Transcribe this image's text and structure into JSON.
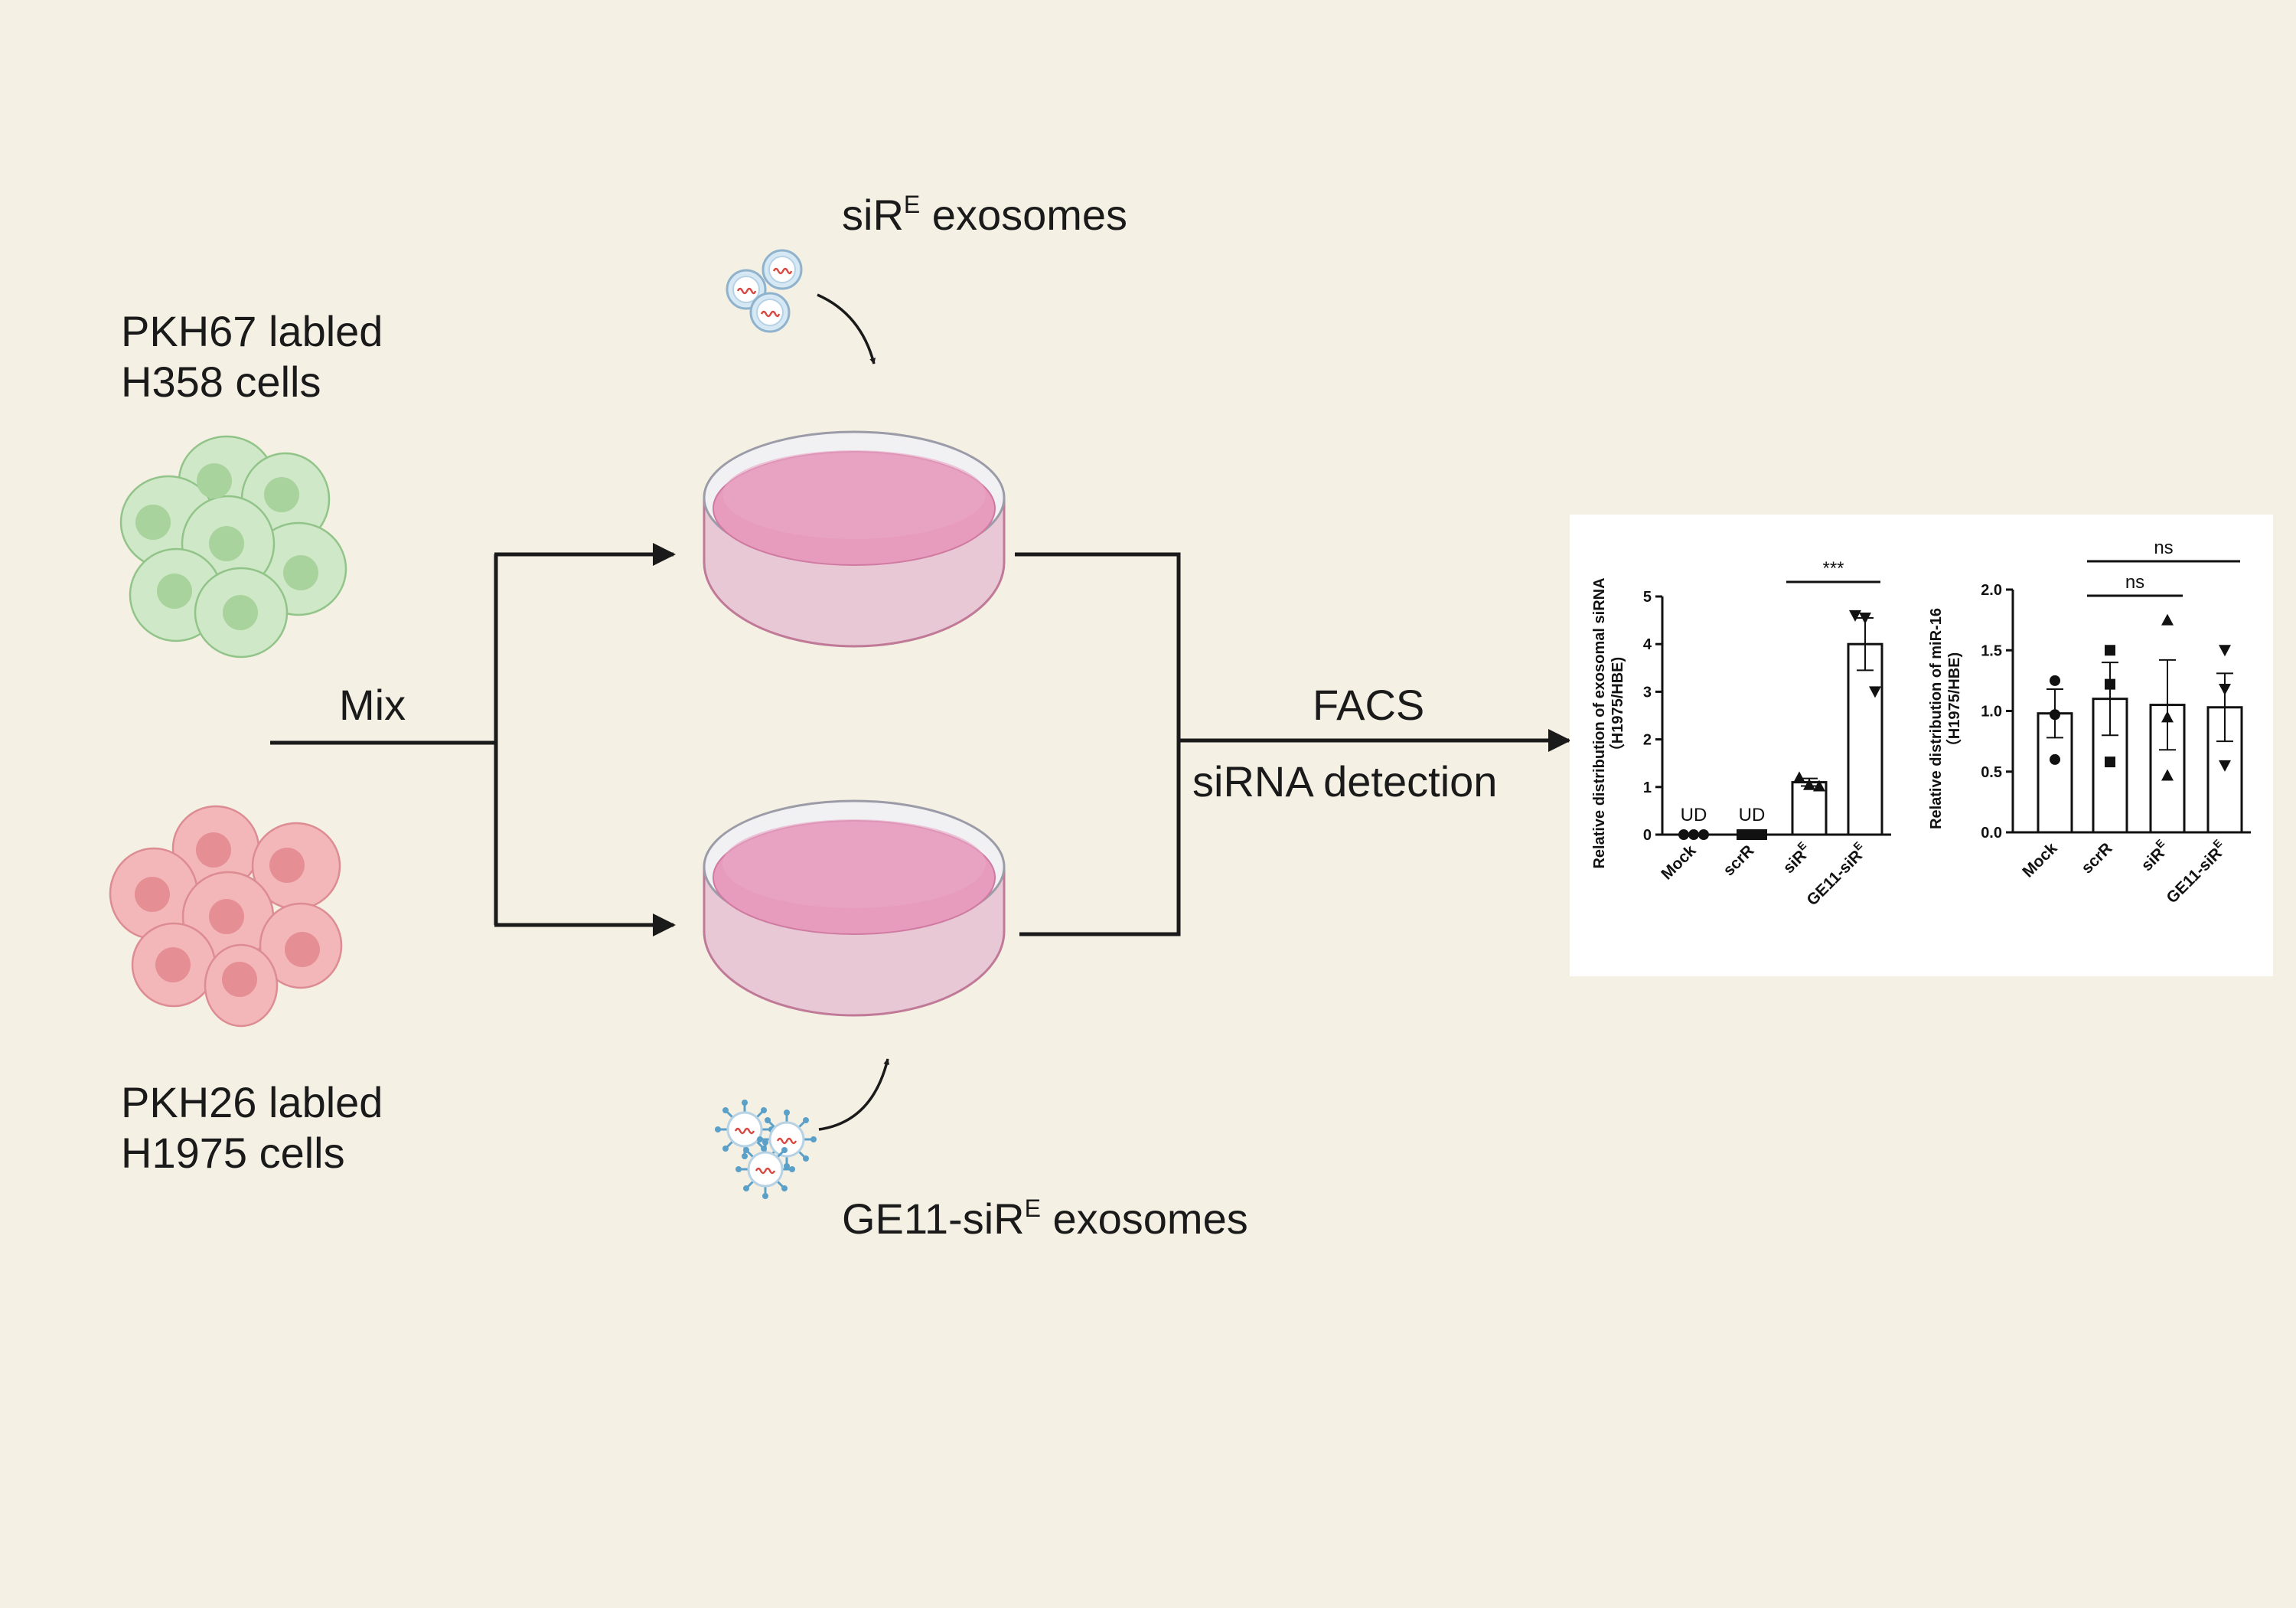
{
  "labels": {
    "h358_line1": "PKH67 labled",
    "h358_line2": "H358 cells",
    "h1975_line1": "PKH26 labled",
    "h1975_line2": "H1975 cells",
    "mix": "Mix",
    "sire_base": "siR",
    "sire_sup": "E",
    "sire_suffix": " exosomes",
    "ge11_base": "GE11-siR",
    "ge11_sup": "E",
    "ge11_suffix": " exosomes",
    "facs": "FACS",
    "detection": "siRNA detection"
  },
  "colors": {
    "background": "#f4f0e3",
    "green_cell": "#cfe8c8",
    "green_nucleus": "#a9d39c",
    "red_cell": "#f3b7b9",
    "red_nucleus": "#e58f95",
    "dish_medium": "#e79bbd",
    "arrow": "#1a1a1a"
  },
  "chart_data": [
    {
      "type": "bar",
      "ylabel_line1": "Relative distribution of exosomal siRNA",
      "ylabel_line2": "（H1975/HBE)",
      "categories": [
        "Mock",
        "scrR",
        "siR",
        "GE11-siR"
      ],
      "category_sup": [
        "",
        "",
        "E",
        "E"
      ],
      "values": [
        0,
        0,
        1.1,
        4.0
      ],
      "errors": [
        0,
        0,
        0.08,
        0.55
      ],
      "points": [
        [
          0,
          0,
          0
        ],
        [
          0,
          0,
          0
        ],
        [
          1.2,
          1.05,
          1.02
        ],
        [
          4.6,
          4.55,
          3.0
        ]
      ],
      "markers": [
        "circle",
        "square",
        "triangle",
        "triangle-down"
      ],
      "undetected_label": "UD",
      "undetected": [
        true,
        true,
        false,
        false
      ],
      "ylim": [
        0,
        5
      ],
      "yticks": [
        "0",
        "1",
        "2",
        "3",
        "4",
        "5"
      ],
      "significance": [
        {
          "from": 2,
          "to": 3,
          "label": "***"
        }
      ]
    },
    {
      "type": "bar",
      "ylabel_line1": "Relative distribution of miR-16",
      "ylabel_line2": "（H1975/HBE)",
      "categories": [
        "Mock",
        "scrR",
        "siR",
        "GE11-siR"
      ],
      "category_sup": [
        "",
        "",
        "E",
        "E"
      ],
      "values": [
        0.98,
        1.1,
        1.05,
        1.03
      ],
      "errors": [
        0.2,
        0.3,
        0.37,
        0.28
      ],
      "points": [
        [
          1.25,
          0.97,
          0.6
        ],
        [
          1.5,
          1.22,
          0.58
        ],
        [
          1.75,
          0.95,
          0.47
        ],
        [
          1.5,
          1.18,
          0.55
        ]
      ],
      "markers": [
        "circle",
        "square",
        "triangle",
        "triangle-down"
      ],
      "undetected_label": "UD",
      "undetected": [
        false,
        false,
        false,
        false
      ],
      "ylim": [
        0,
        2.0
      ],
      "yticks": [
        "0.0",
        "0.5",
        "1.0",
        "1.5",
        "2.0"
      ],
      "significance": [
        {
          "from": 1,
          "to": 2,
          "label": "ns"
        },
        {
          "from": 1,
          "to": 3,
          "label": "ns"
        }
      ]
    }
  ]
}
